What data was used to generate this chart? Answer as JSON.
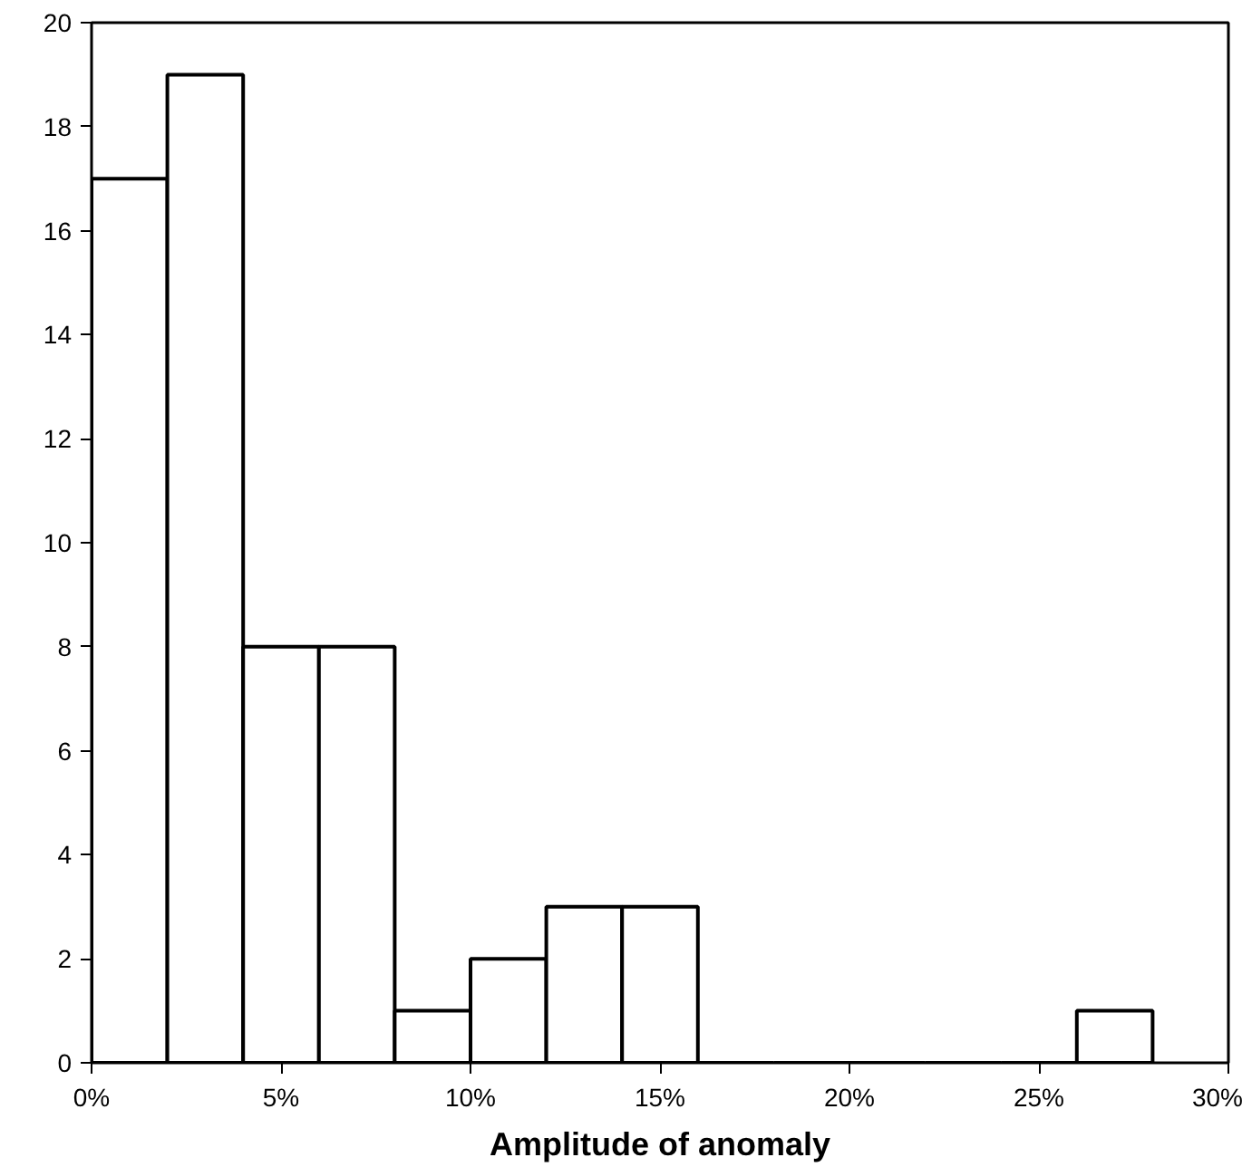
{
  "chart_data": {
    "type": "histogram",
    "xlabel": "Amplitude of anomaly",
    "bins": [
      0,
      2,
      4,
      6,
      8,
      10,
      12,
      14,
      16,
      18,
      20,
      22,
      24,
      26,
      28
    ],
    "values": [
      17,
      19,
      8,
      8,
      1,
      2,
      3,
      3,
      0,
      0,
      0,
      0,
      0,
      1
    ],
    "color": "#ffffff",
    "xlim": [
      0,
      30
    ],
    "ylim": [
      0,
      20
    ],
    "xticks": [
      {
        "value": 0,
        "label": "0%"
      },
      {
        "value": 5,
        "label": "5%"
      },
      {
        "value": 10,
        "label": "10%"
      },
      {
        "value": 15,
        "label": "15%"
      },
      {
        "value": 20,
        "label": "20%"
      },
      {
        "value": 25,
        "label": "25%"
      },
      {
        "value": 30,
        "label": "30%"
      }
    ],
    "yticks": [
      0,
      2,
      4,
      6,
      8,
      10,
      12,
      14,
      16,
      18,
      20
    ],
    "grid": false
  }
}
